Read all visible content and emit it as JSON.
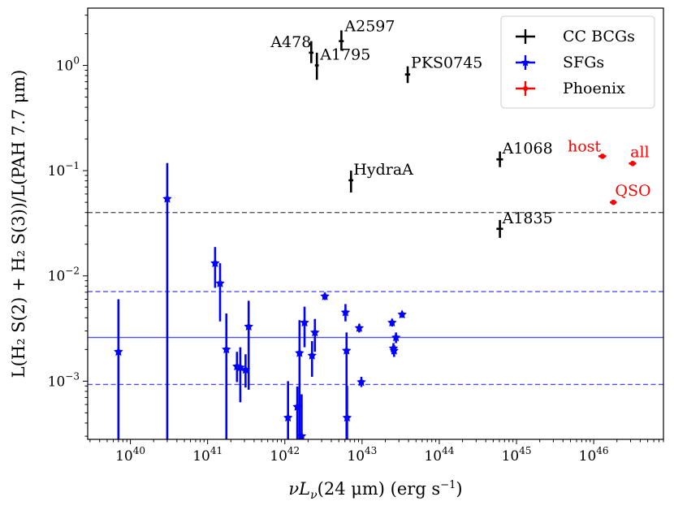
{
  "chart_data": {
    "type": "scatter",
    "xscale": "log",
    "yscale": "log",
    "xlim": [
      2.8e+39,
      8e+46
    ],
    "ylim": [
      0.00028,
      3.5
    ],
    "xlabel": "νL_ν(24 μm) (erg s⁻¹)",
    "ylabel": "L(H₂ S(2) + H₂ S(3))/L(PAH 7.7 μm)",
    "xlabel_parts": {
      "main": "νL",
      "sub": "ν",
      "rest": "(24 μm) (erg s",
      "sup": "−1",
      "close": ")"
    },
    "ylabel_text": "L(H₂ S(2) + H₂ S(3))/L(PAH 7.7 μm)",
    "x_ticks": [
      {
        "value": 1e+40,
        "base": "10",
        "exp": "40"
      },
      {
        "value": 1e+41,
        "base": "10",
        "exp": "41"
      },
      {
        "value": 1e+42,
        "base": "10",
        "exp": "42"
      },
      {
        "value": 1e+43,
        "base": "10",
        "exp": "43"
      },
      {
        "value": 1e+44,
        "base": "10",
        "exp": "44"
      },
      {
        "value": 1e+45,
        "base": "10",
        "exp": "45"
      },
      {
        "value": 1e+46,
        "base": "10",
        "exp": "46"
      }
    ],
    "y_ticks": [
      {
        "value": 0.001,
        "base": "10",
        "exp": "−3"
      },
      {
        "value": 0.01,
        "base": "10",
        "exp": "−2"
      },
      {
        "value": 0.1,
        "base": "10",
        "exp": "−1"
      },
      {
        "value": 1,
        "base": "10",
        "exp": "0"
      }
    ],
    "legend": {
      "position": "upper-right",
      "entries": [
        {
          "label": "CC BCGs",
          "color": "#000000"
        },
        {
          "label": "SFGs",
          "color": "#0000ff"
        },
        {
          "label": "Phoenix",
          "color": "#ff0000"
        }
      ]
    },
    "hlines": [
      {
        "y": 0.04,
        "style": "dashed",
        "color": "#555555"
      },
      {
        "y": 0.0071,
        "style": "dashed",
        "color": "#4d4dff"
      },
      {
        "y": 0.0026,
        "style": "solid",
        "color": "#4d4dff"
      },
      {
        "y": 0.00093,
        "style": "dashed",
        "color": "#4d4dff"
      }
    ],
    "series": [
      {
        "name": "CC BCGs",
        "color": "#000000",
        "marker": "plus",
        "points": [
          {
            "label": "A478",
            "x": 2.2e+42,
            "y": 1.32,
            "ylo": 1.05,
            "yhi": 1.7,
            "xlo": 2.05e+42,
            "xhi": 2.35e+42
          },
          {
            "label": "A2597",
            "x": 5.4e+42,
            "y": 1.7,
            "ylo": 1.38,
            "yhi": 2.15,
            "xlo": 5e+42,
            "xhi": 5.8e+42
          },
          {
            "label": "A1795",
            "x": 2.6e+42,
            "y": 1.0,
            "ylo": 0.73,
            "yhi": 1.32,
            "xlo": 2.45e+42,
            "xhi": 2.75e+42
          },
          {
            "label": "PKS0745",
            "x": 3.9e+43,
            "y": 0.82,
            "ylo": 0.68,
            "yhi": 0.98,
            "xlo": 3.6e+43,
            "xhi": 4.2e+43
          },
          {
            "label": "HydraA",
            "x": 7.2e+42,
            "y": 0.081,
            "ylo": 0.062,
            "yhi": 0.1,
            "xlo": 6.7e+42,
            "xhi": 7.7e+42
          },
          {
            "label": "A1068",
            "x": 6.1e+44,
            "y": 0.128,
            "ylo": 0.108,
            "yhi": 0.152,
            "xlo": 5.5e+44,
            "xhi": 6.7e+44
          },
          {
            "label": "A1835",
            "x": 6.1e+44,
            "y": 0.028,
            "ylo": 0.023,
            "yhi": 0.034,
            "xlo": 5.5e+44,
            "xhi": 6.7e+44
          }
        ]
      },
      {
        "name": "SFGs",
        "color": "#0000ff",
        "marker": "star",
        "points": [
          {
            "x": 7e+39,
            "y": 0.0019,
            "ylo": 0.00028,
            "yhi": 0.006
          },
          {
            "x": 3e+40,
            "y": 0.054,
            "ylo": 0.00028,
            "yhi": 0.118
          },
          {
            "x": 1.25e+41,
            "y": 0.0132,
            "ylo": 0.0077,
            "yhi": 0.0188
          },
          {
            "x": 1.45e+41,
            "y": 0.0085,
            "ylo": 0.0037,
            "yhi": 0.0132
          },
          {
            "x": 1.75e+41,
            "y": 0.002,
            "ylo": 0.00028,
            "yhi": 0.0044
          },
          {
            "x": 2.4e+41,
            "y": 0.00138,
            "ylo": 0.00098,
            "yhi": 0.0019
          },
          {
            "x": 2.65e+41,
            "y": 0.00135,
            "ylo": 0.00063,
            "yhi": 0.0021
          },
          {
            "x": 3.1e+41,
            "y": 0.00128,
            "ylo": 0.00087,
            "yhi": 0.0018
          },
          {
            "x": 3.4e+41,
            "y": 0.0033,
            "ylo": 0.00083,
            "yhi": 0.0058
          },
          {
            "x": 1.1e+42,
            "y": 0.00045,
            "ylo": 0.00028,
            "yhi": 0.001
          },
          {
            "x": 1.45e+42,
            "y": 0.00057,
            "ylo": 0.00028,
            "yhi": 0.00089
          },
          {
            "x": 1.55e+42,
            "y": 0.00185,
            "ylo": 0.00028,
            "yhi": 0.0038
          },
          {
            "x": 1.65e+42,
            "y": 0.0003,
            "ylo": 0.00028,
            "yhi": 0.00075
          },
          {
            "x": 1.8e+42,
            "y": 0.0036,
            "ylo": 0.0021,
            "yhi": 0.0051
          },
          {
            "x": 2.25e+42,
            "y": 0.00175,
            "ylo": 0.0011,
            "yhi": 0.0024
          },
          {
            "x": 2.45e+42,
            "y": 0.0029,
            "ylo": 0.0019,
            "yhi": 0.0039
          },
          {
            "x": 3.3e+42,
            "y": 0.0064,
            "ylo": 0.0059,
            "yhi": 0.0069
          },
          {
            "x": 6.1e+42,
            "y": 0.0045,
            "ylo": 0.0037,
            "yhi": 0.0054
          },
          {
            "x": 6.3e+42,
            "y": 0.00195,
            "ylo": 0.00028,
            "yhi": 0.0029
          },
          {
            "x": 6.4e+42,
            "y": 0.00045,
            "ylo": 0.00028,
            "yhi": 0.0009
          },
          {
            "x": 9.2e+42,
            "y": 0.0032,
            "ylo": 0.0029,
            "yhi": 0.0035
          },
          {
            "x": 9.8e+42,
            "y": 0.00098,
            "ylo": 0.00088,
            "yhi": 0.0011
          },
          {
            "x": 2.45e+43,
            "y": 0.0036,
            "ylo": 0.0033,
            "yhi": 0.0039
          },
          {
            "x": 2.55e+43,
            "y": 0.00205,
            "ylo": 0.0018,
            "yhi": 0.0023
          },
          {
            "x": 2.6e+43,
            "y": 0.00195,
            "ylo": 0.0017,
            "yhi": 0.0022
          },
          {
            "x": 2.75e+43,
            "y": 0.0026,
            "ylo": 0.0023,
            "yhi": 0.0029
          },
          {
            "x": 3.3e+43,
            "y": 0.0043,
            "ylo": 0.004,
            "yhi": 0.0046
          }
        ]
      },
      {
        "name": "Phoenix",
        "color": "#ff0000",
        "marker": "dot",
        "points": [
          {
            "label": "host",
            "x": 1.3e+46,
            "y": 0.137,
            "xlo": 1.15e+46,
            "xhi": 1.45e+46
          },
          {
            "label": "all",
            "x": 3.2e+46,
            "y": 0.117,
            "xlo": 2.85e+46,
            "xhi": 3.55e+46
          },
          {
            "label": "QSO",
            "x": 1.8e+46,
            "y": 0.05,
            "xlo": 1.62e+46,
            "xhi": 1.98e+46
          }
        ]
      }
    ]
  }
}
